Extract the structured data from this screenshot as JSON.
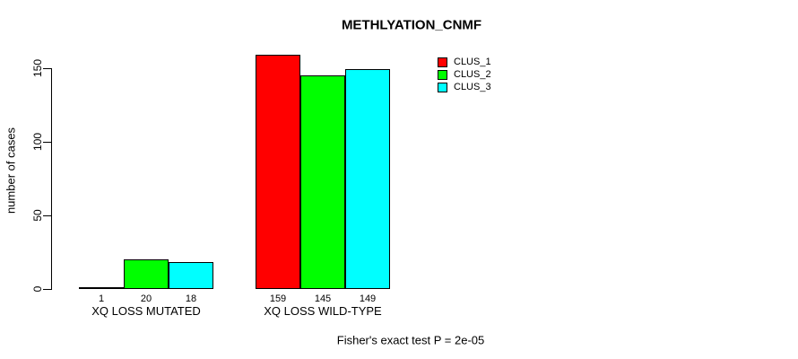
{
  "title": "METHLYATION_CNMF",
  "y_axis": {
    "label": "number of cases"
  },
  "footer": "Fisher's exact test P = 2e-05",
  "legend": {
    "items": [
      {
        "label": "CLUS_1",
        "color": "#ff0000"
      },
      {
        "label": "CLUS_2",
        "color": "#00ff00"
      },
      {
        "label": "CLUS_3",
        "color": "#00ffff"
      }
    ]
  },
  "chart_data": {
    "type": "bar",
    "categories": [
      "XQ LOSS MUTATED",
      "XQ LOSS WILD-TYPE"
    ],
    "series": [
      {
        "name": "CLUS_1",
        "color": "#ff0000",
        "values": [
          1,
          159
        ]
      },
      {
        "name": "CLUS_2",
        "color": "#00ff00",
        "values": [
          20,
          145
        ]
      },
      {
        "name": "CLUS_3",
        "color": "#00ffff",
        "values": [
          18,
          149
        ]
      }
    ],
    "title": "METHLYATION_CNMF",
    "xlabel": "",
    "ylabel": "number of cases",
    "ylim": [
      0,
      150
    ],
    "y_ticks": [
      0,
      50,
      100,
      150
    ],
    "bar_value_labels_shown": true,
    "legend_position": "top-right",
    "grid": false,
    "annotation": "Fisher's exact test P = 2e-05"
  }
}
